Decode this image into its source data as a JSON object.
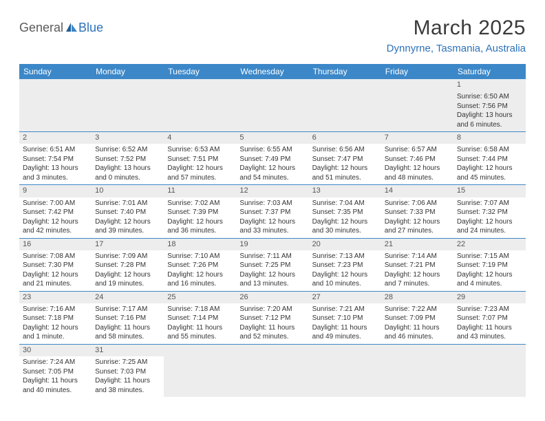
{
  "logo": {
    "part1": "General",
    "part2": "Blue"
  },
  "title": "March 2025",
  "location": "Dynnyrne, Tasmania, Australia",
  "colors": {
    "header_bg": "#3b87c8",
    "header_text": "#ffffff",
    "row_divider": "#3b87c8",
    "daynum_bg": "#ededed",
    "logo_blue": "#2d72b8"
  },
  "day_headers": [
    "Sunday",
    "Monday",
    "Tuesday",
    "Wednesday",
    "Thursday",
    "Friday",
    "Saturday"
  ],
  "weeks": [
    [
      null,
      null,
      null,
      null,
      null,
      null,
      {
        "n": "1",
        "sr": "Sunrise: 6:50 AM",
        "ss": "Sunset: 7:56 PM",
        "d1": "Daylight: 13 hours",
        "d2": "and 6 minutes."
      }
    ],
    [
      {
        "n": "2",
        "sr": "Sunrise: 6:51 AM",
        "ss": "Sunset: 7:54 PM",
        "d1": "Daylight: 13 hours",
        "d2": "and 3 minutes."
      },
      {
        "n": "3",
        "sr": "Sunrise: 6:52 AM",
        "ss": "Sunset: 7:52 PM",
        "d1": "Daylight: 13 hours",
        "d2": "and 0 minutes."
      },
      {
        "n": "4",
        "sr": "Sunrise: 6:53 AM",
        "ss": "Sunset: 7:51 PM",
        "d1": "Daylight: 12 hours",
        "d2": "and 57 minutes."
      },
      {
        "n": "5",
        "sr": "Sunrise: 6:55 AM",
        "ss": "Sunset: 7:49 PM",
        "d1": "Daylight: 12 hours",
        "d2": "and 54 minutes."
      },
      {
        "n": "6",
        "sr": "Sunrise: 6:56 AM",
        "ss": "Sunset: 7:47 PM",
        "d1": "Daylight: 12 hours",
        "d2": "and 51 minutes."
      },
      {
        "n": "7",
        "sr": "Sunrise: 6:57 AM",
        "ss": "Sunset: 7:46 PM",
        "d1": "Daylight: 12 hours",
        "d2": "and 48 minutes."
      },
      {
        "n": "8",
        "sr": "Sunrise: 6:58 AM",
        "ss": "Sunset: 7:44 PM",
        "d1": "Daylight: 12 hours",
        "d2": "and 45 minutes."
      }
    ],
    [
      {
        "n": "9",
        "sr": "Sunrise: 7:00 AM",
        "ss": "Sunset: 7:42 PM",
        "d1": "Daylight: 12 hours",
        "d2": "and 42 minutes."
      },
      {
        "n": "10",
        "sr": "Sunrise: 7:01 AM",
        "ss": "Sunset: 7:40 PM",
        "d1": "Daylight: 12 hours",
        "d2": "and 39 minutes."
      },
      {
        "n": "11",
        "sr": "Sunrise: 7:02 AM",
        "ss": "Sunset: 7:39 PM",
        "d1": "Daylight: 12 hours",
        "d2": "and 36 minutes."
      },
      {
        "n": "12",
        "sr": "Sunrise: 7:03 AM",
        "ss": "Sunset: 7:37 PM",
        "d1": "Daylight: 12 hours",
        "d2": "and 33 minutes."
      },
      {
        "n": "13",
        "sr": "Sunrise: 7:04 AM",
        "ss": "Sunset: 7:35 PM",
        "d1": "Daylight: 12 hours",
        "d2": "and 30 minutes."
      },
      {
        "n": "14",
        "sr": "Sunrise: 7:06 AM",
        "ss": "Sunset: 7:33 PM",
        "d1": "Daylight: 12 hours",
        "d2": "and 27 minutes."
      },
      {
        "n": "15",
        "sr": "Sunrise: 7:07 AM",
        "ss": "Sunset: 7:32 PM",
        "d1": "Daylight: 12 hours",
        "d2": "and 24 minutes."
      }
    ],
    [
      {
        "n": "16",
        "sr": "Sunrise: 7:08 AM",
        "ss": "Sunset: 7:30 PM",
        "d1": "Daylight: 12 hours",
        "d2": "and 21 minutes."
      },
      {
        "n": "17",
        "sr": "Sunrise: 7:09 AM",
        "ss": "Sunset: 7:28 PM",
        "d1": "Daylight: 12 hours",
        "d2": "and 19 minutes."
      },
      {
        "n": "18",
        "sr": "Sunrise: 7:10 AM",
        "ss": "Sunset: 7:26 PM",
        "d1": "Daylight: 12 hours",
        "d2": "and 16 minutes."
      },
      {
        "n": "19",
        "sr": "Sunrise: 7:11 AM",
        "ss": "Sunset: 7:25 PM",
        "d1": "Daylight: 12 hours",
        "d2": "and 13 minutes."
      },
      {
        "n": "20",
        "sr": "Sunrise: 7:13 AM",
        "ss": "Sunset: 7:23 PM",
        "d1": "Daylight: 12 hours",
        "d2": "and 10 minutes."
      },
      {
        "n": "21",
        "sr": "Sunrise: 7:14 AM",
        "ss": "Sunset: 7:21 PM",
        "d1": "Daylight: 12 hours",
        "d2": "and 7 minutes."
      },
      {
        "n": "22",
        "sr": "Sunrise: 7:15 AM",
        "ss": "Sunset: 7:19 PM",
        "d1": "Daylight: 12 hours",
        "d2": "and 4 minutes."
      }
    ],
    [
      {
        "n": "23",
        "sr": "Sunrise: 7:16 AM",
        "ss": "Sunset: 7:18 PM",
        "d1": "Daylight: 12 hours",
        "d2": "and 1 minute."
      },
      {
        "n": "24",
        "sr": "Sunrise: 7:17 AM",
        "ss": "Sunset: 7:16 PM",
        "d1": "Daylight: 11 hours",
        "d2": "and 58 minutes."
      },
      {
        "n": "25",
        "sr": "Sunrise: 7:18 AM",
        "ss": "Sunset: 7:14 PM",
        "d1": "Daylight: 11 hours",
        "d2": "and 55 minutes."
      },
      {
        "n": "26",
        "sr": "Sunrise: 7:20 AM",
        "ss": "Sunset: 7:12 PM",
        "d1": "Daylight: 11 hours",
        "d2": "and 52 minutes."
      },
      {
        "n": "27",
        "sr": "Sunrise: 7:21 AM",
        "ss": "Sunset: 7:10 PM",
        "d1": "Daylight: 11 hours",
        "d2": "and 49 minutes."
      },
      {
        "n": "28",
        "sr": "Sunrise: 7:22 AM",
        "ss": "Sunset: 7:09 PM",
        "d1": "Daylight: 11 hours",
        "d2": "and 46 minutes."
      },
      {
        "n": "29",
        "sr": "Sunrise: 7:23 AM",
        "ss": "Sunset: 7:07 PM",
        "d1": "Daylight: 11 hours",
        "d2": "and 43 minutes."
      }
    ],
    [
      {
        "n": "30",
        "sr": "Sunrise: 7:24 AM",
        "ss": "Sunset: 7:05 PM",
        "d1": "Daylight: 11 hours",
        "d2": "and 40 minutes."
      },
      {
        "n": "31",
        "sr": "Sunrise: 7:25 AM",
        "ss": "Sunset: 7:03 PM",
        "d1": "Daylight: 11 hours",
        "d2": "and 38 minutes."
      },
      null,
      null,
      null,
      null,
      null
    ]
  ]
}
